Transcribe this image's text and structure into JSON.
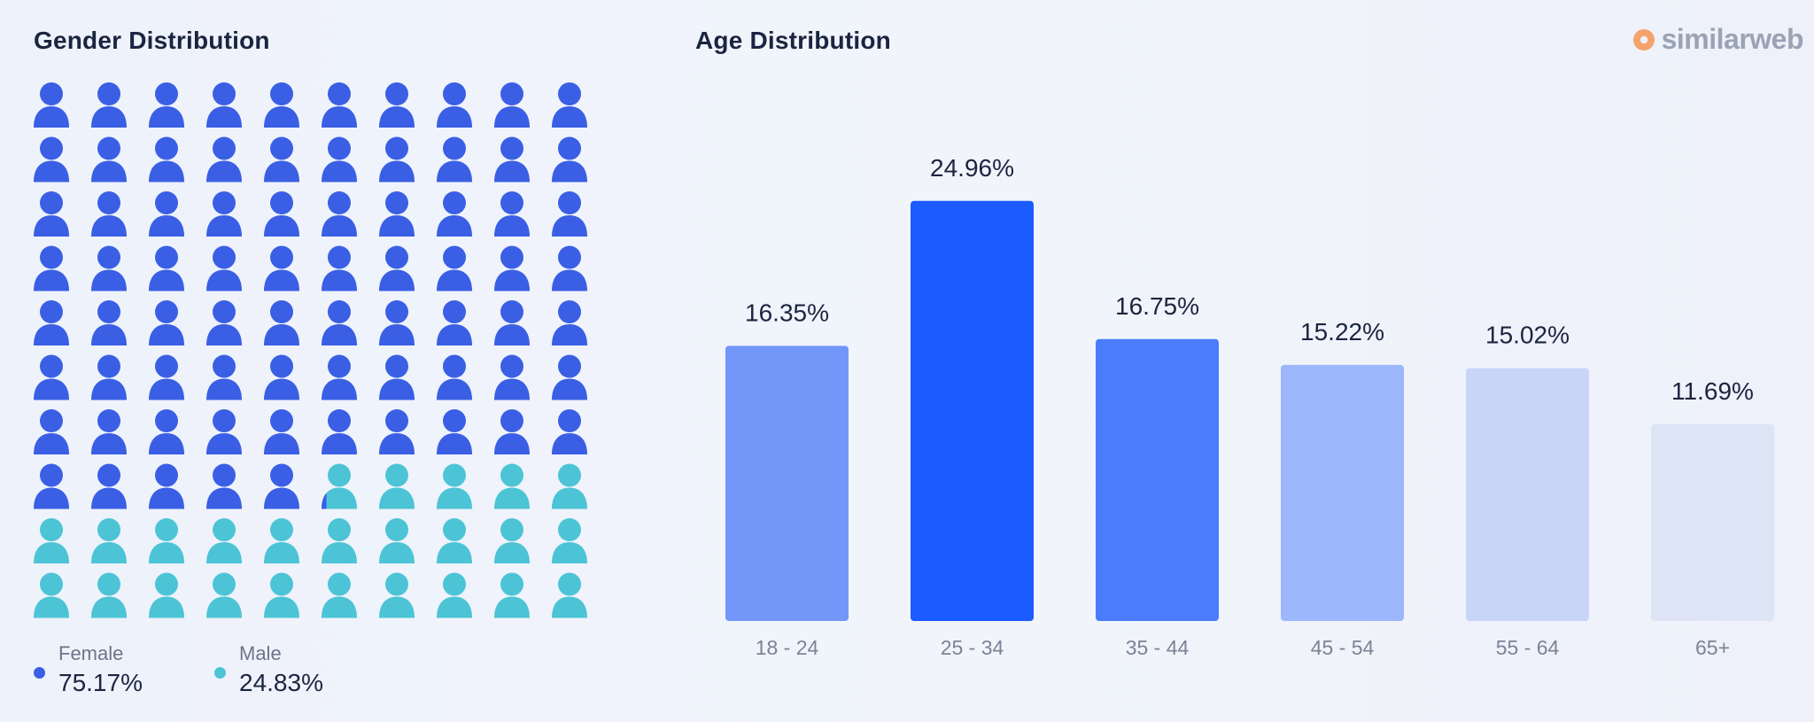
{
  "logo": {
    "text": "similarweb",
    "icon": "similarweb-logo-icon"
  },
  "chart_data": [
    {
      "type": "pictogram",
      "title": "Gender Distribution",
      "grid": {
        "columns": 10,
        "rows": 10
      },
      "series": [
        {
          "name": "Female",
          "value": 75.17,
          "label": "75.17%",
          "color": "#3a5fe5"
        },
        {
          "name": "Male",
          "value": 24.83,
          "label": "24.83%",
          "color": "#4cc4d6"
        }
      ]
    },
    {
      "type": "bar",
      "title": "Age Distribution",
      "categories": [
        "18 - 24",
        "25 - 34",
        "35 - 44",
        "45 - 54",
        "55 - 64",
        "65+"
      ],
      "values": [
        16.35,
        24.96,
        16.75,
        15.22,
        15.02,
        11.69
      ],
      "value_labels": [
        "16.35%",
        "24.96%",
        "16.75%",
        "15.22%",
        "15.02%",
        "11.69%"
      ],
      "colors": [
        "#7397f9",
        "#1c5bfd",
        "#4a7cfc",
        "#9db7fb",
        "#c8d5f8",
        "#dde4f6"
      ],
      "ylim": [
        0,
        25
      ],
      "grid": false
    }
  ]
}
